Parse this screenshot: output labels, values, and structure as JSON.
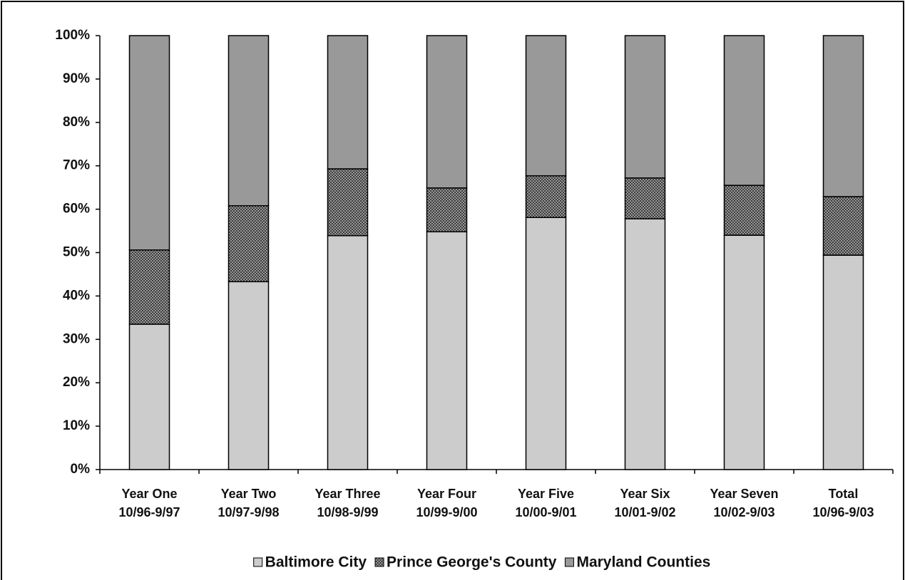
{
  "chart_data": {
    "type": "stacked_bar",
    "categories": [
      [
        "Year One",
        "10/96-9/97"
      ],
      [
        "Year Two",
        "10/97-9/98"
      ],
      [
        "Year Three",
        "10/98-9/99"
      ],
      [
        "Year Four",
        "10/99-9/00"
      ],
      [
        "Year Five",
        "10/00-9/01"
      ],
      [
        "Year Six",
        "10/01-9/02"
      ],
      [
        "Year Seven",
        "10/02-9/03"
      ],
      [
        "Total",
        "10/96-9/03"
      ]
    ],
    "series": [
      {
        "name": "Baltimore City",
        "color": "#cccccc",
        "values": [
          33.5,
          43.3,
          53.9,
          54.8,
          58.1,
          57.8,
          54.0,
          49.4
        ]
      },
      {
        "name": "Prince George's County",
        "color": "#777777",
        "pattern": "crosshatch",
        "values": [
          17.1,
          17.5,
          15.4,
          10.1,
          9.6,
          9.4,
          11.5,
          13.5
        ]
      },
      {
        "name": "Maryland Counties",
        "color": "#999999",
        "values": [
          49.4,
          39.2,
          30.7,
          35.1,
          32.3,
          32.8,
          34.5,
          37.1
        ]
      }
    ],
    "ylim": [
      0,
      100
    ],
    "yticks": [
      {
        "value": 0,
        "label": "0%"
      },
      {
        "value": 10,
        "label": "10%"
      },
      {
        "value": 20,
        "label": "20%"
      },
      {
        "value": 30,
        "label": "30%"
      },
      {
        "value": 40,
        "label": "40%"
      },
      {
        "value": 50,
        "label": "50%"
      },
      {
        "value": 60,
        "label": "60%"
      },
      {
        "value": 70,
        "label": "70%"
      },
      {
        "value": 80,
        "label": "80%"
      },
      {
        "value": 90,
        "label": "90%"
      },
      {
        "value": 100,
        "label": "100%"
      }
    ],
    "legend": "bottom"
  }
}
